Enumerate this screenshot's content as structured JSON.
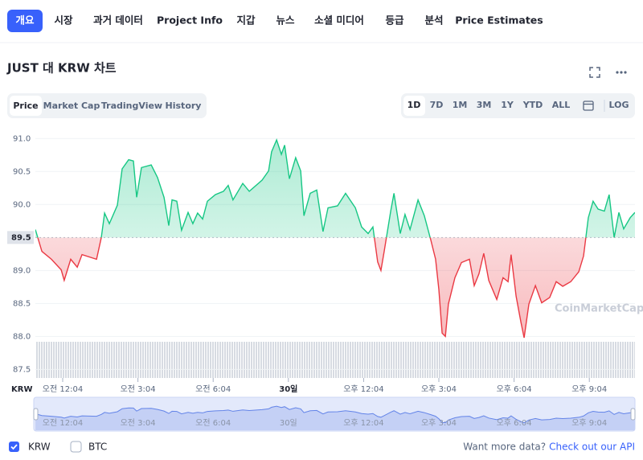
{
  "nav": {
    "tabs": [
      "개요",
      "시장",
      "과거 데이터",
      "Project Info",
      "지갑",
      "뉴스",
      "소셜 미디어",
      "등급",
      "분석",
      "Price Estimates"
    ]
  },
  "header": {
    "title": "JUST 대 KRW 차트"
  },
  "toggles": [
    "Price",
    "Market Cap",
    "TradingView",
    "History"
  ],
  "ranges": [
    "1D",
    "7D",
    "1M",
    "3M",
    "1Y",
    "YTD",
    "ALL"
  ],
  "log_button": "LOG",
  "chart_data": {
    "type": "line",
    "x_axis_label": "KRW",
    "watermark": "CoinMarketCap",
    "x": [
      -1.09,
      -0.83,
      -0.45,
      -0.06,
      0.06,
      0.32,
      0.58,
      0.77,
      1.35,
      1.54,
      1.67,
      1.86,
      2.18,
      2.37,
      2.63,
      2.82,
      2.95,
      3.14,
      3.53,
      3.78,
      4.04,
      4.23,
      4.36,
      4.55,
      4.74,
      5.0,
      5.19,
      5.38,
      5.58,
      5.77,
      6.09,
      6.41,
      6.6,
      6.79,
      7.18,
      7.44,
      7.95,
      8.21,
      8.33,
      8.53,
      8.72,
      8.85,
      9.04,
      9.29,
      9.49,
      9.62,
      9.87,
      10.13,
      10.38,
      10.58,
      10.96,
      11.28,
      11.67,
      11.92,
      12.18,
      12.37,
      12.56,
      12.69,
      12.82,
      13.08,
      13.21,
      13.46,
      13.65,
      13.85,
      14.17,
      14.42,
      14.68,
      14.87,
      15.0,
      15.13,
      15.26,
      15.38,
      15.64,
      15.9,
      16.22,
      16.41,
      16.6,
      16.79,
      16.99,
      17.31,
      17.56,
      17.76,
      17.88,
      18.08,
      18.27,
      18.4,
      18.59,
      18.85,
      19.1,
      19.42,
      19.68,
      19.94,
      20.26,
      20.58,
      20.77,
      20.96,
      21.15,
      21.35,
      21.6,
      21.79,
      21.99,
      22.18,
      22.37,
      22.63,
      22.82
    ],
    "values": [
      89.62,
      89.29,
      89.17,
      89.01,
      88.85,
      89.17,
      89.05,
      89.24,
      89.17,
      89.5,
      89.87,
      89.71,
      89.99,
      90.54,
      90.68,
      90.66,
      90.11,
      90.56,
      90.6,
      90.41,
      90.11,
      89.68,
      90.07,
      90.05,
      89.61,
      89.88,
      89.71,
      89.87,
      89.78,
      90.05,
      90.15,
      90.2,
      90.29,
      90.07,
      90.32,
      90.2,
      90.37,
      90.51,
      90.8,
      90.98,
      90.76,
      90.9,
      90.39,
      90.71,
      90.51,
      89.83,
      90.17,
      90.22,
      89.59,
      89.95,
      89.98,
      90.17,
      89.95,
      89.66,
      89.56,
      89.66,
      89.13,
      89.0,
      89.29,
      89.9,
      90.17,
      89.56,
      89.85,
      89.62,
      90.07,
      89.83,
      89.46,
      89.17,
      88.71,
      88.05,
      88.0,
      88.49,
      88.89,
      89.12,
      89.17,
      88.77,
      88.95,
      89.26,
      88.85,
      88.56,
      88.89,
      88.83,
      89.24,
      88.61,
      88.22,
      87.98,
      88.49,
      88.77,
      88.51,
      88.59,
      88.83,
      88.76,
      88.83,
      88.98,
      89.22,
      89.8,
      90.05,
      89.93,
      89.9,
      90.15,
      89.5,
      89.88,
      89.63,
      89.8,
      89.88
    ],
    "baseline": 89.5,
    "colors": {
      "up": "#16c784",
      "down": "#ea3943"
    },
    "xlim": [
      -1.09,
      22.82
    ],
    "xticks": [
      {
        "value": 0,
        "label": "오전 12:04"
      },
      {
        "value": 3,
        "label": "오전 3:04"
      },
      {
        "value": 6,
        "label": "오전 6:04"
      },
      {
        "value": 9,
        "label": "30일"
      },
      {
        "value": 12,
        "label": "오후 12:04"
      },
      {
        "value": 15,
        "label": "오후 3:04"
      },
      {
        "value": 18,
        "label": "오후 6:04"
      },
      {
        "value": 21,
        "label": "오후 9:04"
      }
    ],
    "ylim": [
      87.37,
      91.15
    ],
    "yticks": [
      87.5,
      {
        "value": 88,
        "label": "88.0"
      },
      88.5,
      {
        "value": 89,
        "label": "89.0"
      },
      {
        "value": 90,
        "label": "90.0"
      },
      90.5,
      {
        "value": 91,
        "label": "91.0"
      }
    ],
    "grid": true
  },
  "footer": {
    "currencies": [
      "KRW",
      "BTC"
    ],
    "prompt": "Want more data?",
    "link": "Check out our API"
  }
}
